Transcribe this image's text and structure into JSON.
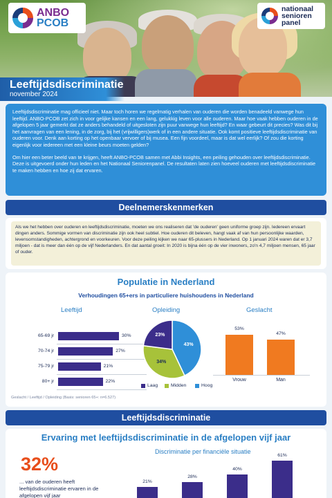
{
  "header": {
    "anbo_line1": "ANBO",
    "anbo_line2": "PCOB",
    "panel_line1": "nationaal",
    "panel_line2": "senioren",
    "panel_line3": "panel",
    "title": "Leeftijdsdiscriminatie",
    "date": "november 2024"
  },
  "intro": {
    "p1": "Leeftijdsdiscriminatie mag officieel niet. Maar toch horen we regelmatig verhalen van ouderen die worden benadeeld vanwege hun leeftijd. ANBO-PCOB zet zich in voor gelijke kansen en een lang, gelukkig leven voor alle ouderen. Maar hoe vaak hebben ouderen in de afgelopen 5 jaar gemerkt dat ze anders behandeld of uitgesloten zijn puur vanwege hun leeftijd? En waar gebeurt dit precies? Was dit bij het aanvragen van een lening, in de zorg, bij het (vrijwilligers)werk of in een andere situatie. Ook komt positieve leeftijdsdiscriminatie van ouderen voor. Denk aan korting op het openbaar vervoer of bij musea. Een fijn voordeel, maar is dat wel eerlijk? Of zou die korting eigenlijk voor iedereen met een kleine beurs moeten gelden?",
    "p2": "Om hier een beter beeld van te krijgen, heeft ANBO-PCOB samen met Abbi Insights, een peiling gehouden over leeftijdsdiscriminatie. Deze is uitgevoerd onder hun leden en het Nationaal Seniorenpanel. De resultaten laten zien hoeveel ouderen met leeftijdsdiscriminatie te maken hebben en hoe zij dat ervaren."
  },
  "section1": {
    "title": "Deelnemerskenmerken",
    "text": "Als we het hebben over ouderen en leeftijdsdiscriminatie, moeten we ons realiseren dat 'de ouderen' geen uniforme groep zijn. Iedereen ervaart dingen anders. Sommige vormen van discriminatie zijn ook heel subtiel. Hoe ouderen dit beleven, hangt vaak af van hun persoonlijke waarden, levensomstandigheden, achtergrond en voorkeuren. Voor deze peiling kijken we naar 65-plussers in Nederland. Op 1 januari 2024 waren dat er 3,7 miljoen - dat is meer dan één op de vijf Nederlanders. En dat aantal groeit: In 2020 is bijna één op de vier inwoners, zo'n 4,7 miljoen mensen, 65 jaar of ouder."
  },
  "population": {
    "title": "Populatie in Nederland",
    "subtitle": "Verhoudingen 65+ers in particuliere huishoudens in Nederland",
    "group_age": "Leeftijd",
    "group_edu": "Opleiding",
    "group_sex": "Geslacht",
    "source": "Geslacht / Leeftijd / Opleiding (Basis: senioren 65+: n=6.527)"
  },
  "chart_data": [
    {
      "type": "bar",
      "orientation": "horizontal",
      "categories": [
        "65-69 jr",
        "70-74 jr",
        "75-79 jr",
        "80+ jr"
      ],
      "values": [
        30,
        27,
        21,
        22
      ],
      "value_labels": [
        "30%",
        "27%",
        "21%",
        "22%"
      ],
      "title": "Leeftijd",
      "color": "#3b2d8a"
    },
    {
      "type": "pie",
      "categories": [
        "Laag",
        "Midden",
        "Hoog"
      ],
      "values": [
        23,
        34,
        43
      ],
      "value_labels": [
        "23%",
        "34%",
        "43%"
      ],
      "colors": [
        "#3b2d8a",
        "#a7c23a",
        "#2f8fd8"
      ],
      "title": "Opleiding",
      "legend": "bottom"
    },
    {
      "type": "bar",
      "categories": [
        "Vrouw",
        "Man"
      ],
      "values": [
        53,
        47
      ],
      "value_labels": [
        "53%",
        "47%"
      ],
      "title": "Geslacht",
      "color": "#f07a20"
    },
    {
      "type": "bar",
      "title": "Discriminatie per financiële situatie",
      "values": [
        21,
        28,
        40,
        61
      ],
      "value_labels": [
        "21%",
        "28%",
        "40%",
        "61%"
      ],
      "color": "#3b2d8a"
    }
  ],
  "section2": {
    "title": "Leeftijdsdiscriminatie",
    "heading": "Ervaring met leeftijdsdiscriminatie in de afgelopen vijf jaar",
    "big_number": "32%",
    "big_text": "... van de ouderen heeft leeftijdsdiscriminatie ervaren in de afgelopen vijf jaar",
    "chart_title": "Discriminatie per financiële situatie"
  }
}
